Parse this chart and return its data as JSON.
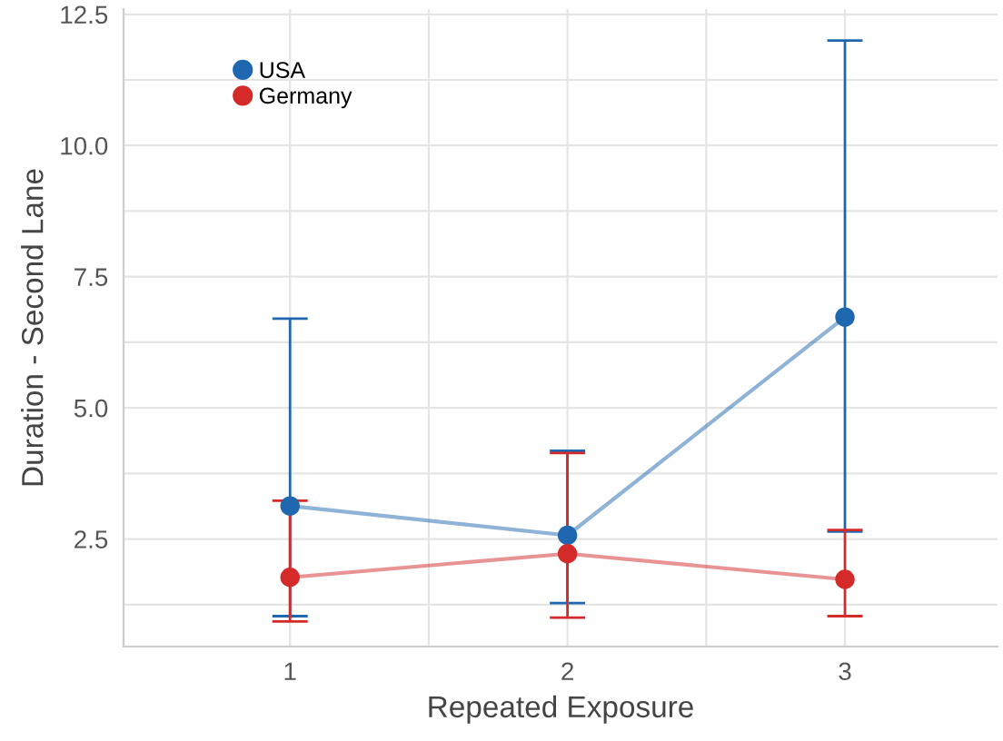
{
  "chart_data": {
    "type": "line",
    "xlabel": "Repeated Exposure",
    "ylabel": "Duration - Second Lane",
    "xlim": [
      0.4,
      3.55
    ],
    "ylim": [
      0.45,
      12.6
    ],
    "xticks": [
      {
        "value": 1,
        "label": "1"
      },
      {
        "value": 1.5,
        "label": null
      },
      {
        "value": 2,
        "label": "2"
      },
      {
        "value": 2.5,
        "label": null
      },
      {
        "value": 3,
        "label": "3"
      }
    ],
    "yticks": [
      {
        "value": 1.25,
        "label": null
      },
      {
        "value": 2.5,
        "label": "2.5"
      },
      {
        "value": 3.75,
        "label": null
      },
      {
        "value": 5,
        "label": "5.0"
      },
      {
        "value": 6.25,
        "label": null
      },
      {
        "value": 7.5,
        "label": "7.5"
      },
      {
        "value": 8.75,
        "label": null
      },
      {
        "value": 10,
        "label": "10.0"
      },
      {
        "value": 11.25,
        "label": null
      },
      {
        "value": 12.5,
        "label": "12.5"
      }
    ],
    "x": [
      1,
      2,
      3
    ],
    "grid": true,
    "legend": "top left",
    "marker": "circle",
    "line_style": "solid",
    "series": [
      {
        "name": "USA",
        "color": "#1f68b0",
        "values": [
          3.13,
          2.57,
          6.73
        ],
        "errors": [
          [
            1.03,
            6.7
          ],
          [
            1.28,
            4.18
          ],
          [
            2.64,
            12.0
          ]
        ]
      },
      {
        "name": "Germany",
        "color": "#d42a2a",
        "values": [
          1.77,
          2.22,
          1.73
        ],
        "errors": [
          [
            0.93,
            3.23
          ],
          [
            1.0,
            4.14
          ],
          [
            1.03,
            2.67
          ]
        ]
      }
    ]
  }
}
